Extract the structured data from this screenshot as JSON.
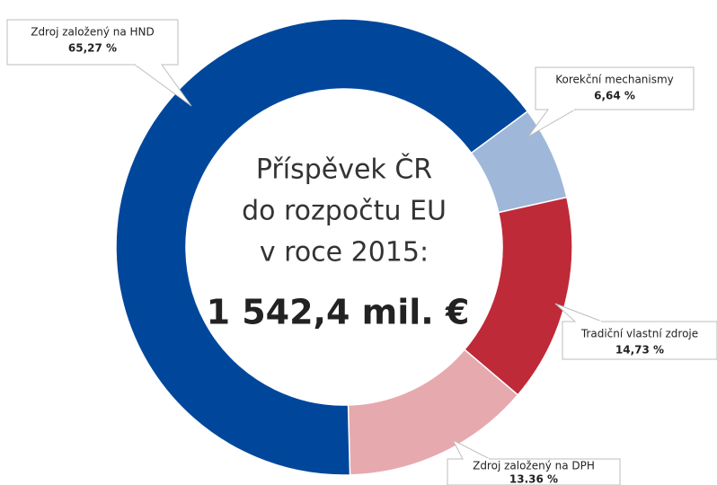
{
  "chart_data": {
    "type": "donut",
    "title_lines": [
      "Příspěvek ČR",
      "do rozpočtu EU",
      "v roce 2015:"
    ],
    "total": "1 542,4 mil. €",
    "categories": [
      "Korekční mechanismy",
      "Tradiční vlastní zdroje",
      "Zdroj založený na DPH",
      "Zdroj založený na HND"
    ],
    "values": [
      6.64,
      14.73,
      13.36,
      65.27
    ],
    "value_labels": [
      "6,64 %",
      "14,73 %",
      "13.36 %",
      "65,27 %"
    ],
    "colors": [
      "#9fb8d9",
      "#be2a37",
      "#e6a9ae",
      "#00479b"
    ]
  }
}
